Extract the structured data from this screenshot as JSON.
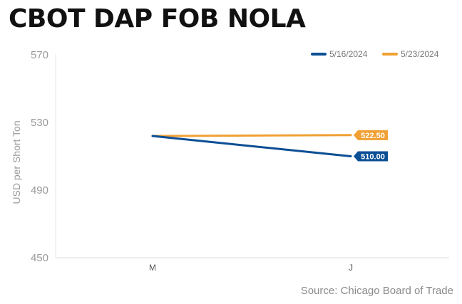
{
  "title": "CBOT DAP FOB NOLA",
  "source": "Source: Chicago Board of Trade",
  "chart_data": {
    "type": "line",
    "categories": [
      "M",
      "J"
    ],
    "ylabel": "USD per Short Ton",
    "ylim": [
      450,
      570
    ],
    "yticks": [
      450,
      490,
      530,
      570
    ],
    "grid": false,
    "legend_placement": "top-right",
    "series": [
      {
        "name": "5/16/2024",
        "color": "#0b4f95",
        "values": [
          522,
          510
        ],
        "end_label": "510.00"
      },
      {
        "name": "5/23/2024",
        "color": "#f1a033",
        "values": [
          522,
          522.5
        ],
        "end_label": "522.50"
      }
    ]
  }
}
